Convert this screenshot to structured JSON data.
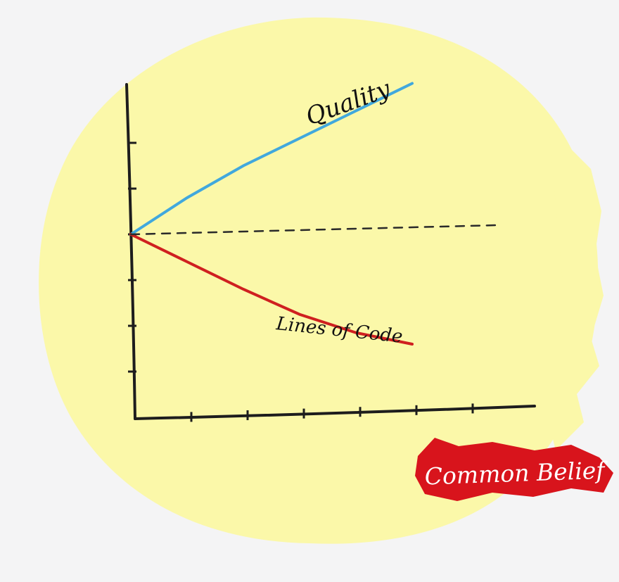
{
  "chart_data": {
    "type": "line",
    "title": "",
    "xlabel": "",
    "ylabel": "",
    "x": [
      0,
      1,
      2,
      3,
      4,
      5
    ],
    "xlim": [
      0,
      7
    ],
    "ylim": [
      -4,
      4
    ],
    "grid": false,
    "legend": "none",
    "series": [
      {
        "name": "Quality",
        "values": [
          0,
          0.8,
          1.5,
          2.1,
          2.7,
          3.3
        ],
        "color": "#41a8dd",
        "style": "solid"
      },
      {
        "name": "Lines of Code",
        "values": [
          0,
          -0.6,
          -1.2,
          -1.75,
          -2.15,
          -2.4
        ],
        "color": "#cf2020",
        "style": "solid"
      },
      {
        "name": "",
        "x": [
          0,
          6.5
        ],
        "values": [
          0,
          0.2
        ],
        "color": "#2a2a2a",
        "style": "dashed"
      }
    ],
    "xticks": [
      1,
      2,
      3,
      4,
      5,
      6
    ],
    "yticks": [
      -3,
      -2,
      -1,
      0,
      1,
      2
    ]
  },
  "stamp": {
    "text": "Common Belief",
    "color": "#d8141c"
  },
  "colors": {
    "background": "#f4f4f5",
    "blob": "#fbf8a9",
    "axis": "#1d1d1d"
  }
}
